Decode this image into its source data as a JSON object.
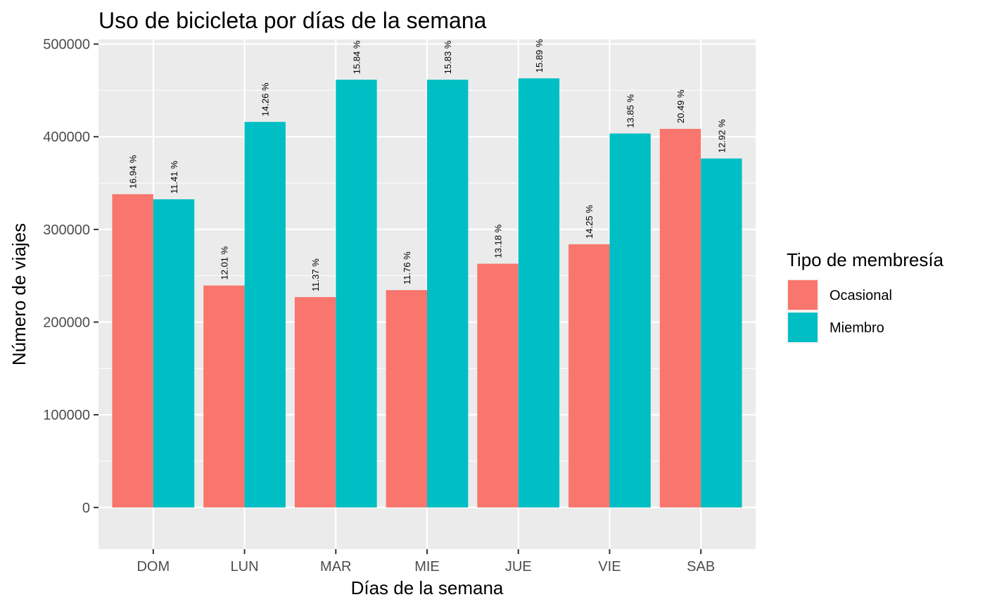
{
  "chart_data": {
    "type": "bar",
    "title": "Uso de bicicleta por días de la semana",
    "xlabel": "Días de la semana",
    "ylabel": "Número de viajes",
    "categories": [
      "DOM",
      "LUN",
      "MAR",
      "MIE",
      "JUE",
      "VIE",
      "SAB"
    ],
    "ylim": [
      -45000,
      505000
    ],
    "yticks": [
      0,
      100000,
      200000,
      300000,
      400000,
      500000
    ],
    "ytick_labels": [
      "0",
      "100000",
      "200000",
      "300000",
      "400000",
      "500000"
    ],
    "grid": true,
    "legend": {
      "title": "Tipo de membresía",
      "position": "right"
    },
    "series": [
      {
        "name": "Ocasional",
        "color": "#F8766D",
        "values": [
          338000,
          239500,
          227000,
          234500,
          263000,
          284000,
          408500
        ],
        "labels": [
          "16.94 %",
          "12.01 %",
          "11.37 %",
          "11.76 %",
          "13.18 %",
          "14.25 %",
          "20.49 %"
        ]
      },
      {
        "name": "Miembro",
        "color": "#00BFC4",
        "values": [
          332500,
          416000,
          461500,
          461500,
          463000,
          403500,
          376500
        ],
        "labels": [
          "11.41 %",
          "14.26 %",
          "15.84 %",
          "15.83 %",
          "15.89 %",
          "13.85 %",
          "12.92 %"
        ]
      }
    ]
  }
}
